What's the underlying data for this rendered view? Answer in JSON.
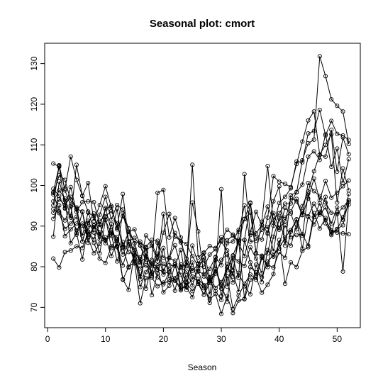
{
  "chart_data": {
    "type": "line",
    "title": "Seasonal plot: cmort",
    "xlabel": "Season",
    "ylabel": "",
    "xlim": [
      -0.5,
      54
    ],
    "ylim": [
      65,
      135
    ],
    "x_ticks": [
      0,
      10,
      20,
      30,
      40,
      50
    ],
    "y_ticks": [
      70,
      80,
      90,
      100,
      110,
      120,
      130
    ],
    "grid": false,
    "legend": "none",
    "marker": "open-circle",
    "line_color": "#000000",
    "x": [
      1,
      2,
      3,
      4,
      5,
      6,
      7,
      8,
      9,
      10,
      11,
      12,
      13,
      14,
      15,
      16,
      17,
      18,
      19,
      20,
      21,
      22,
      23,
      24,
      25,
      26,
      27,
      28,
      29,
      30,
      31,
      32,
      33,
      34,
      35,
      36,
      37,
      38,
      39,
      40,
      41,
      42,
      43,
      44,
      45,
      46,
      47,
      48,
      49,
      50,
      51,
      52
    ],
    "series": [
      {
        "values": [
          105.4,
          104.6,
          99.2,
          107.1,
          101.4,
          97.5,
          100.6,
          91.2,
          95.2,
          99.8,
          94.7,
          89.6,
          97.9,
          86.3,
          87.1,
          85.2,
          81.2,
          81.7,
          98.2,
          98.9,
          87.2,
          92.0,
          87.2,
          80.1,
          105.1,
          82.3,
          83.5,
          77.4,
          78.9,
          99.1,
          75.1,
          82.1,
          77.2,
          102.8,
          87.8,
          88.2,
          90.3,
          88.4,
          96.1,
          99.8,
          85.2,
          97.6,
          98.3,
          106.2,
          110.4,
          111.3,
          131.8,
          126.9,
          121.2,
          119.6,
          118.2,
          110.2
        ]
      },
      {
        "values": [
          98.4,
          104.8,
          94.5,
          92.1,
          105.1,
          97.4,
          93.6,
          89.1,
          92.8,
          97.2,
          91.6,
          95.2,
          94.1,
          85.6,
          84.5,
          77.6,
          82.7,
          80.3,
          79.3,
          78.8,
          82.2,
          85.3,
          80.1,
          80.4,
          95.8,
          88.7,
          77.6,
          76.5,
          82.3,
          80.4,
          85.8,
          86.2,
          89.1,
          91.7,
          95.8,
          87.3,
          86.7,
          92.1,
          102.3,
          100.9,
          100.4,
          99.6,
          105.3,
          110.8,
          116.0,
          118.2,
          107.5,
          107.1,
          113.7,
          103.4,
          111.8,
          107.7
        ]
      },
      {
        "values": [
          97.8,
          102.5,
          101.4,
          96.3,
          94.3,
          93.6,
          87.4,
          89.8,
          91.3,
          92.4,
          93.7,
          90.6,
          84.8,
          88.6,
          89.2,
          85.3,
          84.1,
          85.1,
          81.3,
          93.0,
          80.4,
          80.2,
          84.1,
          76.2,
          79.6,
          78.8,
          78.2,
          79.5,
          82.4,
          86.2,
          84.0,
          79.1,
          86.6,
          86.6,
          95.6,
          83.2,
          82.7,
          83.3,
          90.1,
          95.7,
          97.2,
          99.3,
          105.9,
          105.7,
          112.8,
          113.4,
          118.6,
          112.3,
          115.9,
          112.7,
          112.3,
          111.2
        ]
      },
      {
        "values": [
          99.2,
          97.4,
          94.3,
          99.6,
          93.5,
          95.9,
          96.1,
          95.9,
          90.3,
          94.2,
          95.0,
          89.2,
          92.4,
          89.4,
          85.7,
          81.2,
          87.7,
          85.6,
          82.4,
          88.4,
          93.0,
          87.4,
          86.3,
          85.6,
          82.6,
          80.1,
          80.0,
          83.0,
          84.3,
          87.3,
          86.5,
          87.6,
          85.9,
          82.6,
          88.4,
          93.5,
          90.2,
          94.8,
          91.6,
          93.2,
          95.5,
          95.6,
          98.4,
          100.2,
          107.1,
          108.4,
          106.3,
          112.6,
          104.6,
          109.1,
          100.6,
          106.5
        ]
      },
      {
        "values": [
          95.1,
          105.0,
          98.8,
          95.1,
          94.6,
          87.6,
          93.3,
          92.4,
          88.1,
          86.4,
          87.6,
          94.3,
          84.6,
          88.6,
          85.8,
          86.2,
          84.7,
          78.2,
          85.9,
          79.0,
          82.1,
          88.3,
          86.0,
          82.0,
          79.0,
          80.6,
          83.4,
          85.1,
          84.6,
          86.5,
          89.1,
          87.9,
          86.2,
          91.8,
          93.3,
          83.4,
          91.1,
          104.8,
          90.8,
          89.1,
          94.5,
          93.1,
          89.2,
          94.9,
          98.5,
          103.5,
          107.6,
          110.0,
          112.6,
          95.8,
          104.2,
          98.8
        ]
      },
      {
        "values": [
          93.3,
          96.6,
          95.2,
          97.2,
          94.1,
          86.2,
          90.8,
          93.1,
          87.5,
          92.2,
          84.6,
          85.1,
          93.2,
          89.4,
          81.4,
          81.9,
          84.9,
          86.6,
          86.4,
          82.2,
          82.1,
          81.5,
          78.0,
          74.3,
          85.2,
          80.8,
          81.5,
          76.4,
          78.3,
          81.7,
          83.0,
          77.6,
          88.6,
          95.1,
          86.2,
          86.4,
          89.1,
          89.8,
          83.8,
          92.3,
          92.1,
          93.6,
          96.7,
          92.8,
          100.6,
          98.6,
          97.4,
          95.8,
          93.3,
          93.0,
          94.6,
          96.4
        ]
      },
      {
        "values": [
          96.1,
          98.8,
          96.8,
          92.5,
          89.0,
          90.6,
          88.7,
          86.7,
          90.5,
          86.5,
          88.4,
          87.3,
          83.0,
          86.0,
          80.8,
          79.6,
          80.3,
          78.7,
          83.2,
          78.1,
          79.0,
          80.7,
          75.5,
          77.3,
          81.0,
          75.8,
          73.1,
          77.3,
          74.8,
          76.2,
          79.1,
          82.5,
          81.3,
          80.2,
          84.8,
          82.0,
          78.4,
          88.1,
          93.2,
          89.5,
          91.2,
          96.9,
          96.1,
          92.7,
          96.8,
          101.7,
          96.4,
          101.1,
          97.0,
          98.2,
          99.8,
          101.2
        ]
      },
      {
        "values": [
          94.2,
          93.2,
          89.3,
          90.6,
          92.3,
          86.2,
          91.3,
          88.4,
          83.3,
          91.5,
          88.1,
          81.3,
          86.1,
          83.6,
          83.0,
          76.9,
          83.5,
          73.0,
          78.4,
          84.6,
          76.9,
          77.2,
          79.7,
          78.8,
          75.4,
          79.5,
          82.3,
          73.2,
          81.7,
          72.8,
          79.8,
          78.4,
          73.8,
          86.6,
          81.1,
          77.9,
          82.5,
          79.9,
          87.4,
          91.9,
          86.4,
          85.2,
          90.4,
          93.6,
          92.4,
          95.5,
          92.8,
          94.6,
          90.6,
          94.6,
          91.5,
          97.9
        ]
      },
      {
        "values": [
          98.2,
          93.6,
          91.4,
          94.8,
          87.9,
          93.5,
          85.9,
          90.1,
          88.4,
          85.8,
          90.5,
          85.0,
          80.3,
          85.2,
          84.1,
          80.9,
          82.4,
          77.7,
          80.3,
          80.7,
          79.4,
          76.5,
          75.1,
          81.2,
          77.6,
          76.2,
          73.1,
          76.0,
          79.4,
          75.6,
          71.4,
          82.8,
          86.3,
          72.1,
          79.9,
          78.6,
          77.4,
          81.3,
          82.8,
          84.5,
          87.2,
          89.0,
          91.6,
          84.5,
          92.3,
          90.4,
          93.2,
          97.2,
          88.6,
          89.1,
          92.2,
          95.3
        ]
      },
      {
        "values": [
          91.8,
          95.1,
          87.5,
          89.2,
          90.6,
          90.1,
          87.1,
          83.3,
          85.6,
          87.2,
          82.6,
          86.4,
          85.0,
          79.8,
          82.7,
          75.0,
          78.7,
          81.2,
          77.4,
          75.7,
          78.6,
          74.1,
          80.6,
          74.9,
          72.5,
          77.0,
          75.5,
          71.1,
          79.5,
          74.6,
          80.7,
          76.1,
          78.5,
          75.2,
          73.2,
          80.5,
          76.2,
          84.1,
          82.5,
          85.6,
          90.2,
          87.3,
          87.8,
          88.0,
          85.2,
          93.2,
          89.4,
          92.0,
          87.8,
          89.3,
          90.2,
          96.4
        ]
      },
      {
        "values": [
          82.0,
          79.8,
          83.6,
          84.0,
          85.0,
          84.6,
          88.5,
          85.9,
          82.0,
          80.9,
          85.0,
          86.8,
          76.8,
          80.0,
          81.1,
          71.0,
          77.2,
          77.3,
          75.2,
          76.1,
          76.3,
          76.8,
          74.2,
          76.0,
          74.0,
          76.2,
          74.7,
          72.0,
          73.3,
          68.4,
          72.8,
          68.6,
          71.7,
          72.0,
          76.8,
          77.4,
          73.6,
          75.6,
          78.2,
          86.6,
          75.8,
          81.1,
          79.9,
          83.9,
          84.8,
          92.2,
          93.5,
          91.6,
          88.9,
          88.4,
          88.2,
          88.0
        ]
      },
      {
        "values": [
          87.4,
          101.0,
          96.3,
          85.8,
          88.3,
          81.8,
          89.8,
          90.2,
          86.7,
          94.5,
          88.9,
          84.8,
          76.9,
          74.3,
          83.4,
          82.3,
          74.6,
          80.7,
          79.9,
          73.7,
          75.3,
          80.6,
          74.5,
          75.2,
          76.9,
          79.0,
          75.2,
          76.6,
          74.0,
          71.8,
          77.7,
          69.6,
          72.9,
          75.8,
          78.1,
          76.8,
          82.1,
          80.5,
          79.8,
          83.6,
          82.2,
          88.6,
          91.7,
          87.6,
          98.0,
          92.2,
          95.6,
          90.7,
          88.1,
          93.4,
          78.8,
          96.0
        ]
      }
    ]
  }
}
